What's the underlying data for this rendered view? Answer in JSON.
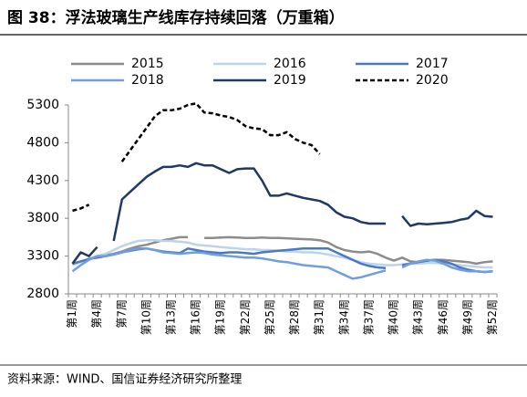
{
  "chart_data": {
    "type": "line",
    "title": "图 38：浮法玻璃生产线库存持续回落（万重箱）",
    "source": "资料来源：WIND、国信证券经济研究所整理",
    "categories": [
      "第1周",
      null,
      null,
      "第4周",
      null,
      null,
      "第7周",
      null,
      null,
      "第10周",
      null,
      null,
      "第13周",
      null,
      null,
      "第16周",
      null,
      null,
      "第19周",
      null,
      null,
      "第22周",
      null,
      null,
      "第25周",
      null,
      null,
      "第28周",
      null,
      null,
      "第31周",
      null,
      null,
      "第34周",
      null,
      null,
      "第37周",
      null,
      null,
      "第40周",
      null,
      null,
      "第43周",
      null,
      null,
      "第46周",
      null,
      null,
      "第49周",
      null,
      null,
      "第52周"
    ],
    "ylim": [
      2800,
      5300
    ],
    "yticks": [
      2800,
      3300,
      3800,
      4300,
      4800,
      5300
    ],
    "series": [
      {
        "name": "2015",
        "color": "#8c8c8c",
        "dashed": false,
        "values": [
          3200,
          3230,
          3260,
          3290,
          3310,
          3330,
          3360,
          3400,
          3430,
          3450,
          3480,
          3510,
          3530,
          3550,
          3550,
          null,
          3540,
          3540,
          3545,
          3550,
          3545,
          3540,
          3540,
          3545,
          3540,
          3540,
          3535,
          3530,
          3525,
          3520,
          3510,
          3480,
          3420,
          3380,
          3360,
          3350,
          3360,
          3330,
          3280,
          3240,
          3280,
          3230,
          3220,
          3240,
          3250,
          3250,
          3240,
          3230,
          3220,
          3200,
          3220,
          3230
        ]
      },
      {
        "name": "2016",
        "color": "#bcd3ec",
        "dashed": false,
        "values": [
          3180,
          3220,
          3270,
          3300,
          3330,
          3380,
          3430,
          3470,
          3500,
          3510,
          3510,
          3500,
          3500,
          3490,
          3480,
          3450,
          3440,
          3430,
          3420,
          3410,
          3400,
          3390,
          3390,
          3380,
          3380,
          3370,
          3360,
          3360,
          3350,
          3350,
          3340,
          3320,
          3300,
          3280,
          3250,
          3220,
          3200,
          3190,
          3180,
          3180,
          3190,
          3200,
          3200,
          3210,
          3210,
          3200,
          3190,
          3180,
          3170,
          3160,
          3150,
          3150
        ]
      },
      {
        "name": "2017",
        "color": "#4a78c2",
        "dashed": false,
        "values": [
          3200,
          3230,
          3260,
          3280,
          3300,
          3320,
          3350,
          3370,
          3390,
          3400,
          3380,
          3360,
          3350,
          3340,
          3400,
          3380,
          3360,
          3350,
          3340,
          3350,
          3350,
          3340,
          3330,
          3350,
          3360,
          3370,
          3380,
          3390,
          3400,
          3400,
          3400,
          3400,
          3350,
          3300,
          3250,
          3200,
          3170,
          3150,
          3140,
          null,
          3180,
          3200,
          3220,
          3240,
          3250,
          3230,
          3200,
          3150,
          3120,
          3100,
          3090,
          3100
        ]
      },
      {
        "name": "2018",
        "color": "#6e9fdc",
        "dashed": false,
        "values": [
          3100,
          3180,
          3250,
          3300,
          3300,
          3320,
          3350,
          3380,
          3400,
          3400,
          3380,
          3350,
          3340,
          3330,
          3340,
          3350,
          3340,
          3320,
          3310,
          3300,
          3290,
          3280,
          3280,
          3270,
          3250,
          3230,
          3220,
          3200,
          3180,
          3170,
          3160,
          3150,
          3100,
          3050,
          3000,
          3020,
          3050,
          3080,
          3110,
          null,
          3150,
          3200,
          3230,
          3250,
          3240,
          3200,
          3150,
          3120,
          3100,
          3100,
          3090,
          3100
        ]
      },
      {
        "name": "2019",
        "color": "#1f3864",
        "dashed": false,
        "values": [
          3200,
          3350,
          3300,
          3420,
          null,
          3500,
          4050,
          4150,
          4250,
          4350,
          4420,
          4480,
          4480,
          4500,
          4480,
          4530,
          4500,
          4500,
          4450,
          4400,
          4450,
          4460,
          4460,
          4300,
          4100,
          4100,
          4130,
          4100,
          4070,
          4050,
          4030,
          3980,
          3880,
          3820,
          3800,
          3750,
          3730,
          3730,
          3730,
          null,
          3830,
          3700,
          3730,
          3720,
          3730,
          3740,
          3750,
          3780,
          3800,
          3900,
          3830,
          3820
        ]
      },
      {
        "name": "2020",
        "color": "#000000",
        "dashed": true,
        "values": [
          3900,
          3930,
          3980,
          null,
          null,
          null,
          4550,
          4700,
          4850,
          5000,
          5150,
          5230,
          5230,
          5250,
          5300,
          5320,
          5200,
          5190,
          5160,
          5140,
          5100,
          5020,
          4990,
          4980,
          4900,
          4900,
          4940,
          4850,
          4800,
          4770,
          4650,
          null,
          null,
          null,
          null,
          null,
          null,
          null,
          null,
          null,
          null,
          null,
          null,
          null,
          null,
          null,
          null,
          null,
          null,
          null,
          null,
          null
        ]
      }
    ]
  }
}
